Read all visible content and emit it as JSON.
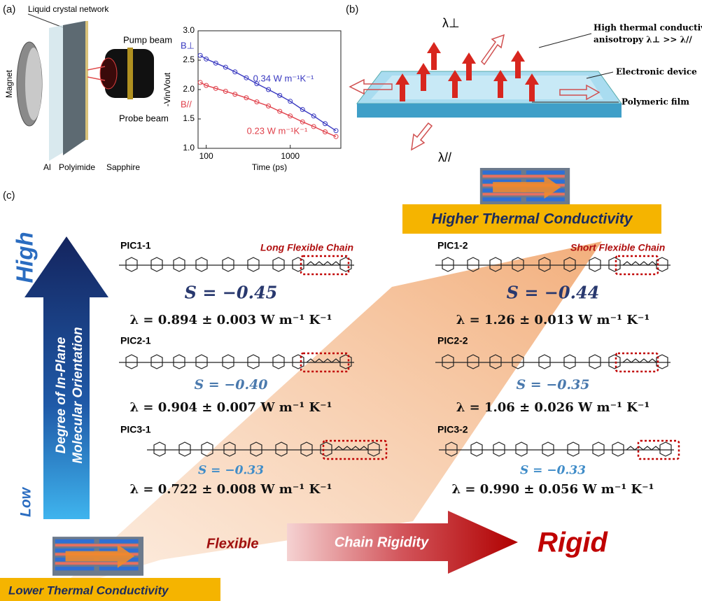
{
  "chart_data": {
    "type": "scatter",
    "xlabel": "Time (ps)",
    "ylabel": "-Vin/Vout",
    "xscale": "log",
    "xlim": [
      80,
      4000
    ],
    "xticks": [
      100,
      1000
    ],
    "ylim": [
      1,
      3
    ],
    "yticks": [
      {
        "value": 1,
        "label": "1.0"
      },
      {
        "value": 1.5,
        "label": "1.5"
      },
      {
        "value": 2,
        "label": "2.0"
      },
      {
        "value": 2.5,
        "label": "2.5"
      },
      {
        "value": 3,
        "label": "3.0"
      }
    ],
    "x": [
      85,
      100,
      130,
      170,
      220,
      300,
      400,
      550,
      750,
      1000,
      1400,
      1900,
      2600,
      3500
    ],
    "series": [
      {
        "name": "B⊥",
        "color": "#3838c0",
        "values": [
          2.58,
          2.52,
          2.45,
          2.38,
          2.3,
          2.2,
          2.1,
          2.0,
          1.9,
          1.8,
          1.66,
          1.55,
          1.42,
          1.3
        ]
      },
      {
        "name": "B//",
        "color": "#e0404a",
        "values": [
          2.12,
          2.07,
          2.02,
          1.97,
          1.92,
          1.86,
          1.79,
          1.72,
          1.63,
          1.55,
          1.45,
          1.37,
          1.28,
          1.2
        ]
      }
    ],
    "annotations": [
      "0.34 W m⁻¹K⁻¹",
      "0.23 W m⁻¹K⁻¹"
    ]
  },
  "panel_a": {
    "label": "(a)",
    "liquid_crystal": "Liquid crystal network",
    "magnet": "Magnet",
    "pump": "Pump beam",
    "probe": "Probe beam",
    "al": "Al",
    "polyimide": "Polyimide",
    "sapphire": "Sapphire"
  },
  "panel_b": {
    "label": "(b)",
    "lambda_perp": "λ⊥",
    "lambda_par": "λ//",
    "anisotropy": [
      "High thermal conductivity",
      "anisotropy λ⊥ >> λ//"
    ],
    "device": "Electronic device",
    "film": "Polymeric film"
  },
  "panel_c": {
    "label": "(c)",
    "higher": "Higher Thermal Conductivity",
    "lower": "Lower Thermal Conductivity",
    "high": "High",
    "low": "Low",
    "orientation": [
      "Degree of In-Plane",
      "Molecular Orientation"
    ],
    "flexible": "Flexible",
    "rigidity": "Chain Rigidity",
    "rigid": "Rigid",
    "long_chain": "Long Flexible Chain",
    "short_chain": "Short Flexible Chain",
    "materials": [
      {
        "name": "PIC1-1",
        "s": "S = −0.45",
        "lambda": "λ = 0.894 ± 0.003 W m⁻¹ K⁻¹"
      },
      {
        "name": "PIC2-1",
        "s": "S = −0.40",
        "lambda": "λ = 0.904 ± 0.007 W m⁻¹ K⁻¹"
      },
      {
        "name": "PIC3-1",
        "s": "S = −0.33",
        "lambda": "λ = 0.722 ± 0.008 W m⁻¹ K⁻¹"
      },
      {
        "name": "PIC1-2",
        "s": "S = −0.44",
        "lambda": "λ = 1.26 ± 0.013 W m⁻¹ K⁻¹"
      },
      {
        "name": "PIC2-2",
        "s": "S = −0.35",
        "lambda": "λ = 1.06 ± 0.026 W m⁻¹ K⁻¹"
      },
      {
        "name": "PIC3-2",
        "s": "S = −0.33",
        "lambda": "λ = 0.990 ± 0.056 W m⁻¹ K⁻¹"
      }
    ]
  }
}
